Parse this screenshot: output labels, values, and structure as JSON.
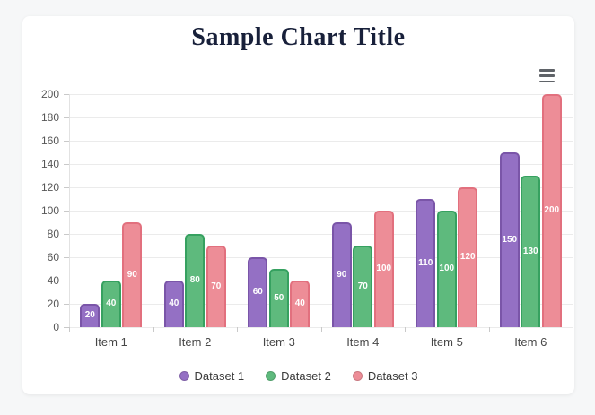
{
  "page": {
    "background": "#f6f7f8",
    "card_background": "#ffffff"
  },
  "header": {
    "title": "Sample Chart Title",
    "menu_icon": "hamburger-menu-icon"
  },
  "chart_data": {
    "type": "bar",
    "title": "Sample Chart Title",
    "categories": [
      "Item 1",
      "Item 2",
      "Item 3",
      "Item 4",
      "Item 5",
      "Item 6"
    ],
    "series": [
      {
        "name": "Dataset 1",
        "values": [
          20,
          40,
          60,
          90,
          110,
          150
        ],
        "fill": "#9470c4",
        "border": "#7a55a8"
      },
      {
        "name": "Dataset 2",
        "values": [
          40,
          80,
          50,
          70,
          100,
          130
        ],
        "fill": "#5eba7d",
        "border": "#36a160"
      },
      {
        "name": "Dataset 3",
        "values": [
          90,
          70,
          40,
          100,
          120,
          200
        ],
        "fill": "#ed8d97",
        "border": "#e2707e"
      }
    ],
    "ylim": [
      0,
      200
    ],
    "yticks": [
      0,
      20,
      40,
      60,
      80,
      100,
      120,
      140,
      160,
      180,
      200
    ],
    "grid": true,
    "legend_position": "bottom",
    "value_labels": "inside-center-white",
    "xlabel": "",
    "ylabel": ""
  },
  "colors": {
    "grid_line": "#ebebeb",
    "axis_tick": "#c9c9c9",
    "axis_text": "#565656",
    "title_text": "#18203a"
  }
}
